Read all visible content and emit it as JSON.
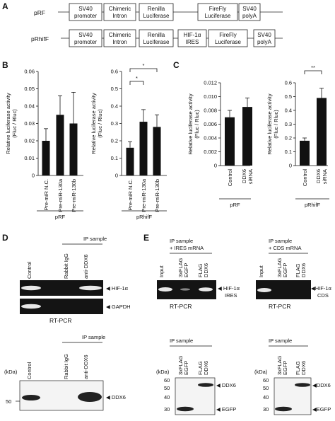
{
  "panel_a": {
    "label": "A",
    "constructs": [
      {
        "name": "pRF",
        "elements": [
          [
            "SV40",
            "promoter"
          ],
          [
            "Chimeric",
            "Intron"
          ],
          [
            "Renilla",
            "Luciferase"
          ],
          [
            "FireFly",
            "Luciferase"
          ],
          [
            "SV40",
            "polyA"
          ]
        ]
      },
      {
        "name": "pRhifF",
        "elements": [
          [
            "SV40",
            "promoter"
          ],
          [
            "Chimeric",
            "Intron"
          ],
          [
            "Renilla",
            "Luciferase"
          ],
          [
            "HIF-1α",
            "IRES"
          ],
          [
            "FireFly",
            "Luciferase"
          ],
          [
            "SV40",
            "polyA"
          ]
        ]
      }
    ]
  },
  "panel_b": {
    "label": "B"
  },
  "panel_c": {
    "label": "C"
  },
  "panel_d": {
    "label": "D",
    "ip_header": "IP sample",
    "lanes": [
      "Control",
      "Rabbit IgG",
      "anti-DDX6"
    ],
    "gel_labels": [
      "HIF-1α",
      "GAPDH"
    ],
    "method": "RT-PCR",
    "kda_label": "(kDa)",
    "marker": "50",
    "blot_label": "DDX6"
  },
  "panel_e": {
    "label": "E",
    "left_header": [
      "IP sample",
      "+ IRES mRNA"
    ],
    "right_header": [
      "IP sample",
      "+ CDS mRNA"
    ],
    "lanes": [
      "Input",
      "3xFLAG EGFP",
      "FLAG DDX6"
    ],
    "lanes_short": [
      "3xFLAG",
      "EGFP",
      "FLAG",
      "DDX6"
    ],
    "left_band_label": [
      "HIF-1α",
      "IRES"
    ],
    "right_band_label": [
      "HIF-1α",
      "CDS"
    ],
    "method": "RT-PCR",
    "ip_sample": "IP sample",
    "kda_label": "(kDa)",
    "markers": [
      "60",
      "50",
      "40",
      "30"
    ],
    "blot_labels": [
      "DDX6",
      "EGFP"
    ]
  },
  "chart_data": [
    {
      "type": "bar",
      "panel": "B",
      "group": "pRF",
      "ylabel": "Relative luciferase activity (Fluc / Rluc)",
      "ylim": [
        0,
        0.06
      ],
      "yticks": [
        0,
        0.01,
        0.02,
        0.03,
        0.04,
        0.05,
        0.06
      ],
      "categories": [
        "Pre-miR N.C.",
        "Pre-miR-130a",
        "Pre-miR-130b"
      ],
      "values": [
        0.02,
        0.035,
        0.03
      ],
      "errors": [
        0.007,
        0.011,
        0.018
      ]
    },
    {
      "type": "bar",
      "panel": "B",
      "group": "pRhifF",
      "ylabel": "Relative luciferase activity (Fluc / Rluc)",
      "ylim": [
        0,
        0.6
      ],
      "yticks": [
        0,
        0.1,
        0.2,
        0.3,
        0.4,
        0.5,
        0.6
      ],
      "categories": [
        "Pre-miR N.C.",
        "Pre-miR-130a",
        "Pre-miR-130b"
      ],
      "values": [
        0.16,
        0.31,
        0.28
      ],
      "errors": [
        0.035,
        0.07,
        0.07
      ],
      "significance": [
        "*",
        "*"
      ]
    },
    {
      "type": "bar",
      "panel": "C",
      "group": "pRF",
      "ylabel": "Relative luciferase activity (Fluc / Rluc)",
      "ylim": [
        0,
        0.012
      ],
      "yticks": [
        0,
        0.002,
        0.004,
        0.006,
        0.008,
        0.01,
        0.012
      ],
      "categories": [
        "Control",
        "DDX6 siRNA"
      ],
      "values": [
        0.007,
        0.0085
      ],
      "errors": [
        0.001,
        0.0013
      ]
    },
    {
      "type": "bar",
      "panel": "C",
      "group": "pRhifF",
      "ylabel": "Relative luciferase activity (Fluc / Rluc)",
      "ylim": [
        0,
        0.6
      ],
      "yticks": [
        0,
        0.1,
        0.2,
        0.3,
        0.4,
        0.5,
        0.6
      ],
      "categories": [
        "Control",
        "DDX6 siRNA"
      ],
      "values": [
        0.18,
        0.49
      ],
      "errors": [
        0.02,
        0.07
      ],
      "significance": [
        "**"
      ]
    }
  ]
}
